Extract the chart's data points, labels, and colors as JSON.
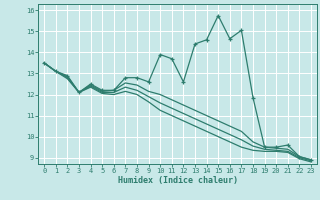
{
  "xlabel": "Humidex (Indice chaleur)",
  "bg_color": "#c8e8e8",
  "grid_color": "#ffffff",
  "line_color": "#2e7d6e",
  "marker": "+",
  "xlim": [
    -0.5,
    23.5
  ],
  "ylim": [
    8.7,
    16.3
  ],
  "yticks": [
    9,
    10,
    11,
    12,
    13,
    14,
    15,
    16
  ],
  "xticks": [
    0,
    1,
    2,
    3,
    4,
    5,
    6,
    7,
    8,
    9,
    10,
    11,
    12,
    13,
    14,
    15,
    16,
    17,
    18,
    19,
    20,
    21,
    22,
    23
  ],
  "series": [
    {
      "y": [
        13.5,
        13.1,
        12.9,
        12.1,
        12.5,
        12.2,
        12.2,
        12.8,
        12.8,
        12.6,
        13.9,
        13.7,
        12.6,
        14.4,
        14.6,
        15.75,
        14.65,
        15.05,
        11.85,
        9.5,
        9.5,
        9.6,
        9.05,
        8.9
      ],
      "marker": true
    },
    {
      "y": [
        13.5,
        13.1,
        12.85,
        12.1,
        12.45,
        12.15,
        12.2,
        12.55,
        12.45,
        12.15,
        12.0,
        11.75,
        11.5,
        11.25,
        11.0,
        10.75,
        10.5,
        10.25,
        9.75,
        9.5,
        9.45,
        9.4,
        9.05,
        8.9
      ],
      "marker": false
    },
    {
      "y": [
        13.5,
        13.1,
        12.8,
        12.1,
        12.4,
        12.1,
        12.1,
        12.35,
        12.2,
        11.9,
        11.6,
        11.35,
        11.1,
        10.85,
        10.6,
        10.35,
        10.1,
        9.85,
        9.55,
        9.4,
        9.35,
        9.3,
        9.0,
        8.85
      ],
      "marker": false
    },
    {
      "y": [
        13.5,
        13.1,
        12.75,
        12.1,
        12.35,
        12.05,
        12.0,
        12.15,
        12.0,
        11.65,
        11.25,
        11.0,
        10.75,
        10.5,
        10.25,
        10.0,
        9.75,
        9.5,
        9.35,
        9.3,
        9.3,
        9.25,
        8.95,
        8.8
      ],
      "marker": false
    }
  ]
}
